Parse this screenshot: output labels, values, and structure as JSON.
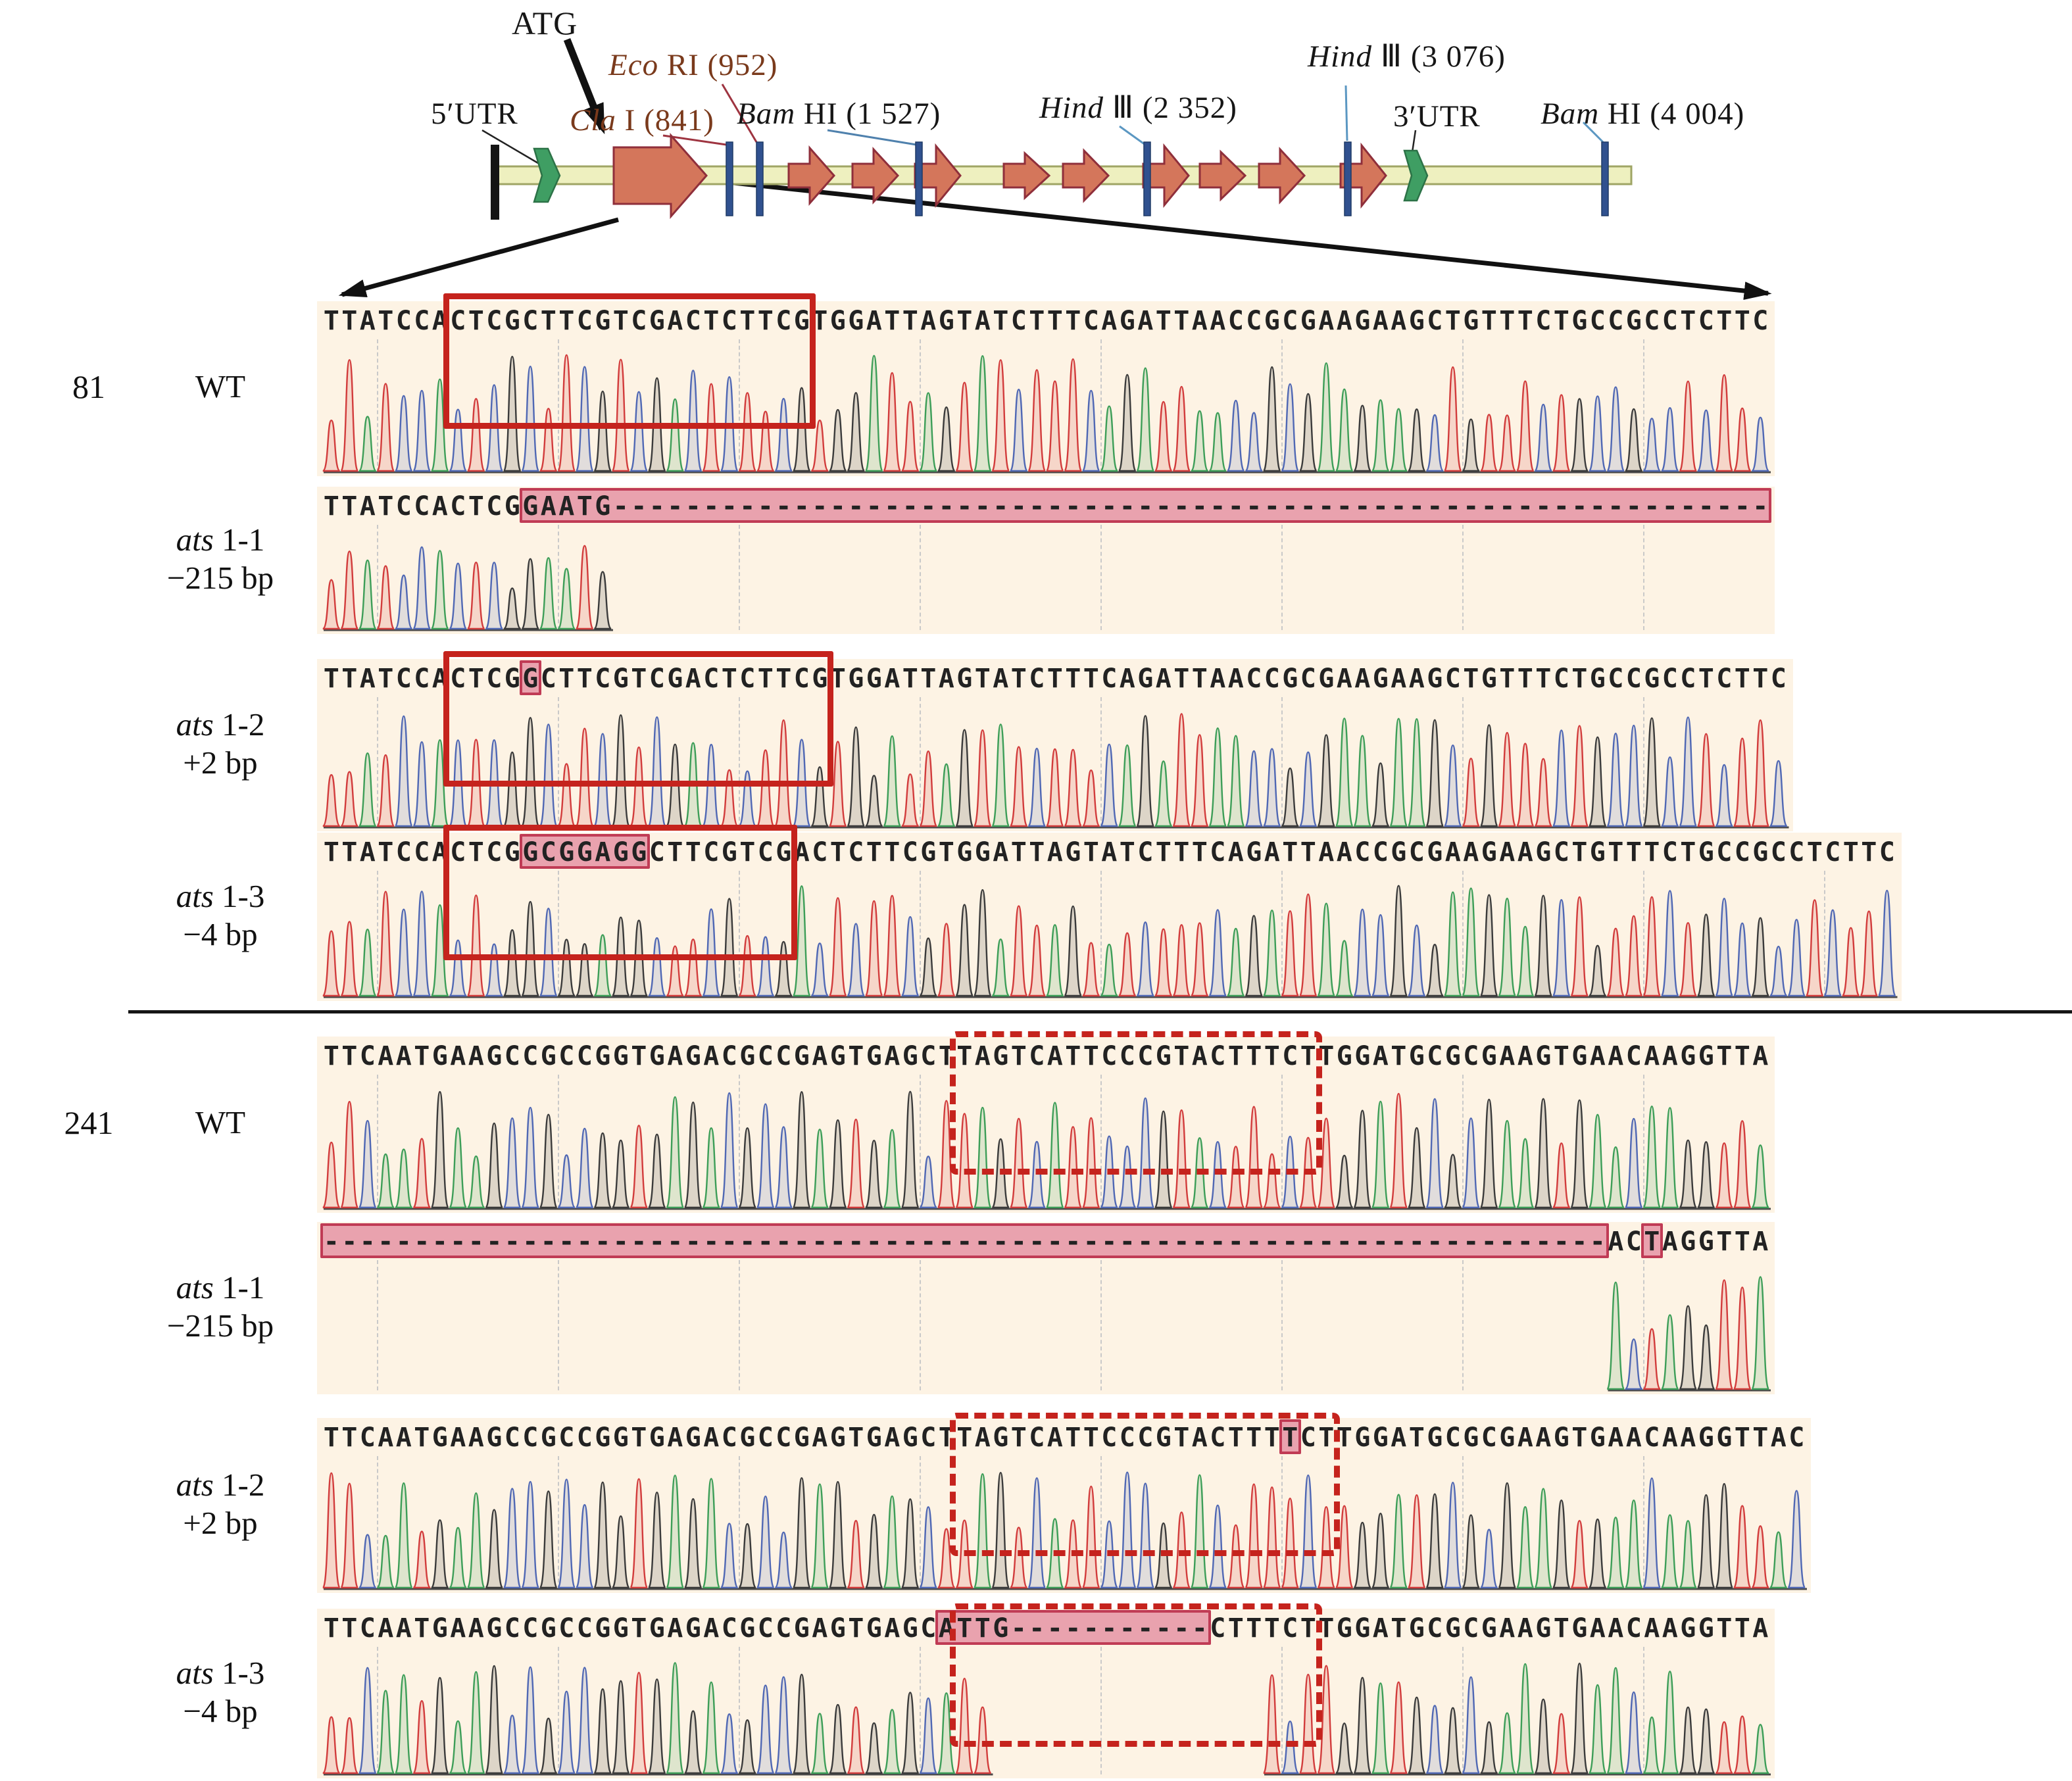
{
  "diagram": {
    "atg": "ATG",
    "utr5": "5′UTR",
    "utr3": "3′UTR",
    "sites": {
      "cla": {
        "italic": "Cla",
        "rest": " I (841)"
      },
      "eco": {
        "italic": "Eco",
        "rest": " RI (952)"
      },
      "bam1": {
        "italic": "Bam",
        "rest": " HI (1 527)"
      },
      "hind1": {
        "italic": "Hind",
        "rest": " Ⅲ (2 352)"
      },
      "hind2": {
        "italic": "Hind",
        "rest": " Ⅲ (3 076)"
      },
      "bam2": {
        "italic": "Bam",
        "rest": " HI (4 004)"
      }
    }
  },
  "base_colors": {
    "A": "#3d9e58",
    "C": "#5068b4",
    "G": "#3b3b3b",
    "T": "#d23c3c"
  },
  "panel_bg": "#fdf3e4",
  "accent_red": "#c5231d",
  "highlight_pink": "#e9a2ae",
  "rows": [
    {
      "start_number": "81",
      "name_italic": "",
      "name_rest": "WT",
      "mutation": "",
      "seq": "TTATCCACTCGCTTCGTCGACTCTTCGTGGATTAGTATCTTTCAGATTAACCGCGAAGAAGCTGTTTCTGCCGCCTCTTC",
      "pink": [],
      "box": {
        "style": "solid",
        "range": [
          7,
          27
        ]
      },
      "trace": [
        [
          0,
          80
        ]
      ]
    },
    {
      "start_number": "",
      "name_italic": "ats",
      "name_rest": " 1-1",
      "mutation": "−215 bp",
      "seq": "TTATCCACTCGGAATG----------------------------------------------------------------",
      "pink": [
        [
          11,
          80
        ]
      ],
      "box": null,
      "trace": [
        [
          0,
          16
        ]
      ]
    },
    {
      "start_number": "",
      "name_italic": "ats",
      "name_rest": " 1-2",
      "mutation": "+2 bp",
      "seq": "TTATCCACTCGGCTTCGTCGACTCTTCGTGGATTAGTATCTTTCAGATTAACCGCGAAGAAGCTGTTTCTGCCGCCTCTTC",
      "pink": [
        [
          11,
          12
        ]
      ],
      "box": {
        "style": "solid",
        "range": [
          7,
          28
        ]
      },
      "trace": [
        [
          0,
          81
        ]
      ]
    },
    {
      "start_number": "",
      "name_italic": "ats",
      "name_rest": " 1-3",
      "mutation": "−4 bp",
      "seq": "TTATCCACTCGGCGGAGGCTTCGTCGACTCTTCGTGGATTAGTATCTTTCAGATTAACCGCGAAGAAGCTGTTTCTGCCGCCTCTTC",
      "pink": [
        [
          11,
          18
        ]
      ],
      "box": {
        "style": "solid",
        "range": [
          7,
          26
        ]
      },
      "trace": [
        [
          0,
          87
        ]
      ]
    },
    {
      "start_number": "241",
      "name_italic": "",
      "name_rest": "WT",
      "mutation": "",
      "seq": "TTCAATGAAGCCGCCGGTGAGACGCCGAGTGAGCTTAGTCATTCCCGTACTTTCTTGGATGCGCGAAGTGAACAAGGTTA",
      "pink": [],
      "box": {
        "style": "dashed",
        "range": [
          35,
          55
        ]
      },
      "trace": [
        [
          0,
          80
        ]
      ]
    },
    {
      "start_number": "",
      "name_italic": "ats",
      "name_rest": " 1-1",
      "mutation": "−215 bp",
      "seq": "-----------------------------------------------------------------------ACTAGGTTA",
      "pink": [
        [
          0,
          71
        ],
        [
          73,
          74
        ]
      ],
      "box": null,
      "trace": [
        [
          71,
          80
        ]
      ]
    },
    {
      "start_number": "",
      "name_italic": "ats",
      "name_rest": " 1-2",
      "mutation": "+2 bp",
      "seq": "TTCAATGAAGCCGCCGGTGAGACGCCGAGTGAGCTTAGTCATTCCCGTACTTTTCTTGGATGCGCGAAGTGAACAAGGTTAC",
      "pink": [
        [
          53,
          54
        ]
      ],
      "box": {
        "style": "dashed",
        "range": [
          35,
          56
        ]
      },
      "trace": [
        [
          0,
          82
        ]
      ]
    },
    {
      "start_number": "",
      "name_italic": "ats",
      "name_rest": " 1-3",
      "mutation": "−4 bp",
      "seq": "TTCAATGAAGCCGCCGGTGAGACGCCGAGTGAGCATTG-----------CTTTCTTGGATGCGCGAAGTGAACAAGGTTA",
      "pink": [
        [
          34,
          49
        ]
      ],
      "box": {
        "style": "dashed",
        "range": [
          35,
          55
        ]
      },
      "trace": [
        [
          0,
          37
        ],
        [
          52,
          80
        ]
      ]
    }
  ]
}
